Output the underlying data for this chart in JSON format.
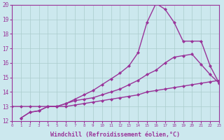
{
  "background_color": "#cce8ee",
  "grid_color": "#aacccc",
  "line_color": "#993399",
  "marker": "D",
  "marker_size": 2.5,
  "line_width": 1.0,
  "xlabel": "Windchill (Refroidissement éolien,°C)",
  "xlabel_fontsize": 6.0,
  "xlim": [
    0,
    23
  ],
  "ylim": [
    12,
    20
  ],
  "xticks": [
    0,
    1,
    2,
    3,
    4,
    5,
    6,
    7,
    8,
    9,
    10,
    11,
    12,
    13,
    14,
    15,
    16,
    17,
    18,
    19,
    20,
    21,
    22,
    23
  ],
  "yticks": [
    12,
    13,
    14,
    15,
    16,
    17,
    18,
    19,
    20
  ],
  "line1_x": [
    0,
    1,
    2,
    3,
    4,
    5,
    6,
    7,
    8,
    9,
    10,
    11,
    12,
    13,
    14,
    15,
    16,
    17,
    18,
    19,
    20,
    21,
    22,
    23
  ],
  "line1_y": [
    13.0,
    13.0,
    13.0,
    13.0,
    13.0,
    13.0,
    13.0,
    13.1,
    13.2,
    13.3,
    13.4,
    13.5,
    13.6,
    13.7,
    13.8,
    14.0,
    14.1,
    14.2,
    14.3,
    14.4,
    14.5,
    14.6,
    14.7,
    14.8
  ],
  "line2_x": [
    1,
    2,
    3,
    4,
    5,
    6,
    7,
    8,
    9,
    10,
    11,
    12,
    13,
    14,
    15,
    16,
    17,
    18,
    19,
    20,
    21,
    22,
    23
  ],
  "line2_y": [
    12.2,
    12.6,
    12.7,
    13.0,
    13.0,
    13.2,
    13.4,
    13.5,
    13.6,
    13.8,
    14.0,
    14.2,
    14.5,
    14.8,
    15.2,
    15.5,
    16.0,
    16.4,
    16.5,
    16.6,
    15.9,
    15.2,
    14.6
  ],
  "line3_x": [
    1,
    2,
    3,
    4,
    5,
    6,
    7,
    8,
    9,
    10,
    11,
    12,
    13,
    14,
    15,
    16,
    17,
    18,
    19,
    20,
    21,
    22,
    23
  ],
  "line3_y": [
    12.2,
    12.6,
    12.7,
    13.0,
    13.0,
    13.2,
    13.5,
    13.8,
    14.1,
    14.5,
    14.9,
    15.3,
    15.8,
    16.7,
    18.8,
    20.1,
    19.7,
    18.8,
    17.5,
    17.5,
    17.5,
    15.8,
    14.6
  ]
}
